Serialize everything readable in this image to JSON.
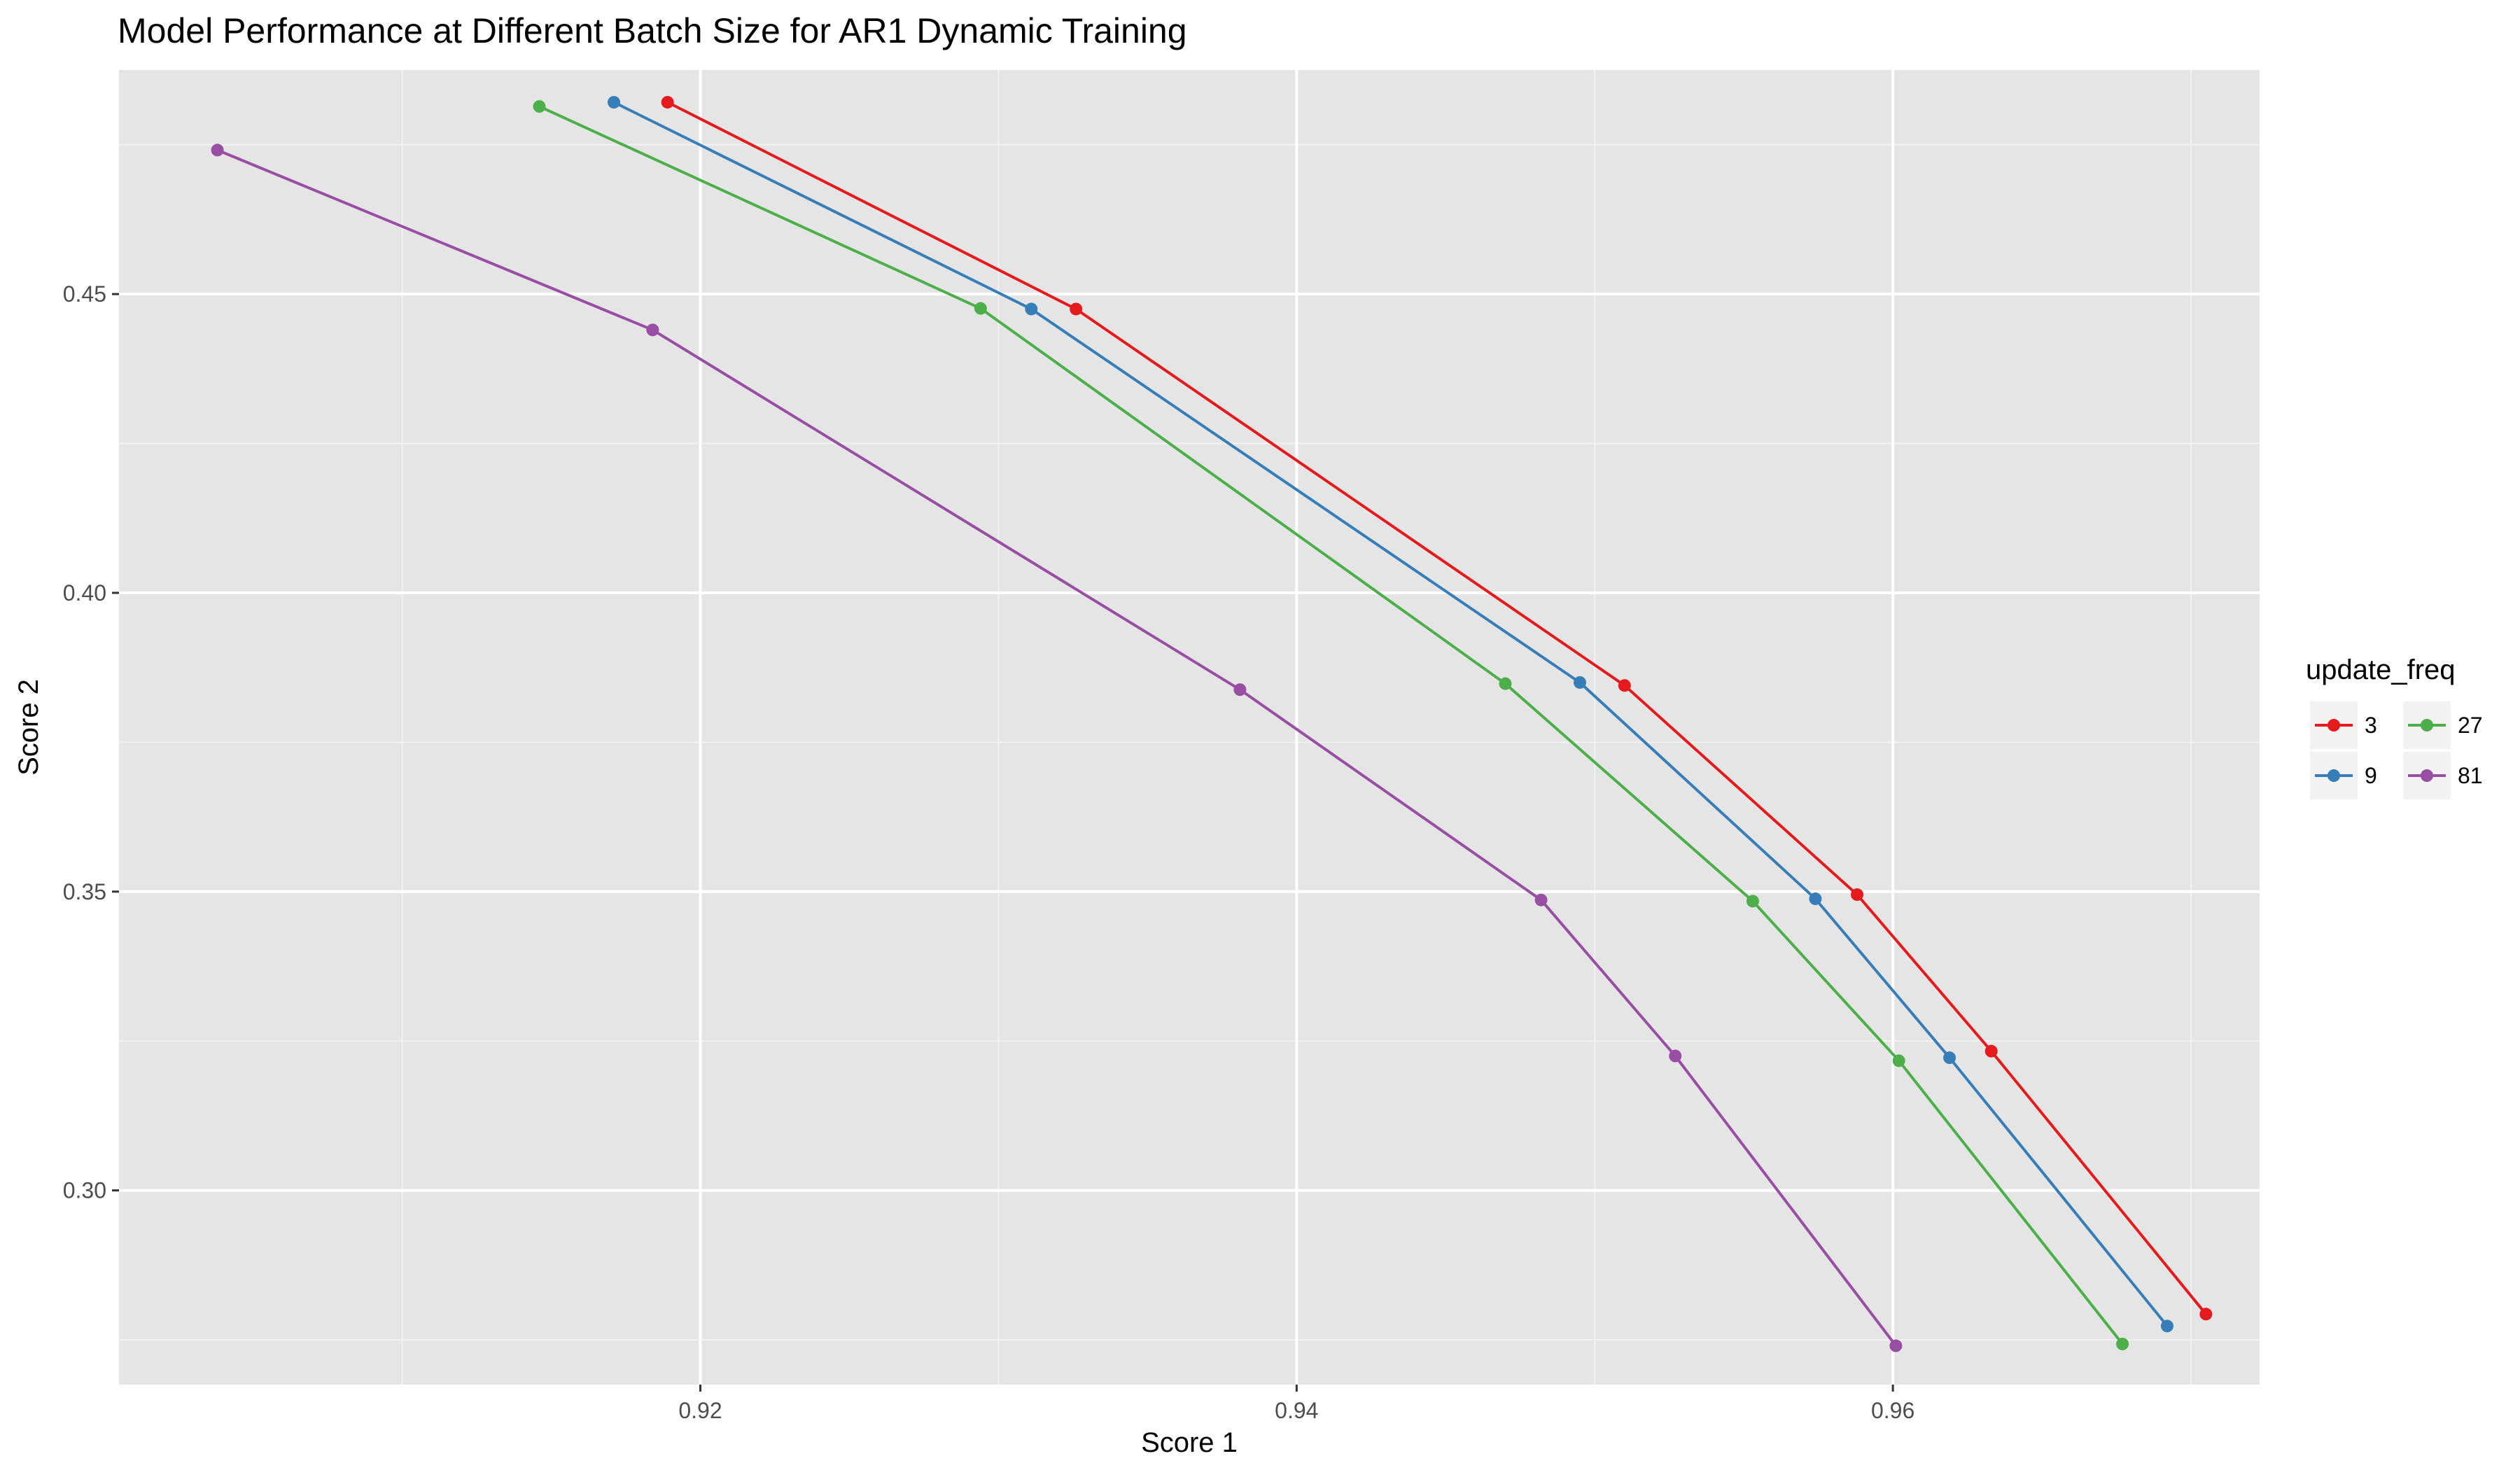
{
  "chart_data": {
    "type": "line",
    "title": "Model Performance at Different Batch Size for AR1 Dynamic Training",
    "xlabel": "Score 1",
    "ylabel": "Score 2",
    "xlim": [
      0.9005,
      0.9723
    ],
    "ylim": [
      0.2675,
      0.4875
    ],
    "x_ticks": [
      0.92,
      0.94,
      0.96
    ],
    "x_tick_labels": [
      "0.92",
      "0.94",
      "0.96"
    ],
    "y_ticks": [
      0.3,
      0.35,
      0.4,
      0.45
    ],
    "y_tick_labels": [
      "0.30",
      "0.35",
      "0.40",
      "0.45"
    ],
    "grid": true,
    "background": "#e5e5e5",
    "legend": {
      "title": "update_freq",
      "position": "right"
    },
    "series": [
      {
        "name": "3",
        "color": "#e41a1c",
        "points": [
          {
            "x": 0.9189,
            "y": 0.4821
          },
          {
            "x": 0.9326,
            "y": 0.4475
          },
          {
            "x": 0.951,
            "y": 0.3845
          },
          {
            "x": 0.9588,
            "y": 0.3495
          },
          {
            "x": 0.9633,
            "y": 0.3233
          },
          {
            "x": 0.9705,
            "y": 0.2793
          }
        ]
      },
      {
        "name": "9",
        "color": "#377eb8",
        "points": [
          {
            "x": 0.9171,
            "y": 0.4821
          },
          {
            "x": 0.9311,
            "y": 0.4475
          },
          {
            "x": 0.9495,
            "y": 0.385
          },
          {
            "x": 0.9574,
            "y": 0.3488
          },
          {
            "x": 0.9619,
            "y": 0.3222
          },
          {
            "x": 0.9692,
            "y": 0.2773
          }
        ]
      },
      {
        "name": "27",
        "color": "#4daf4a",
        "points": [
          {
            "x": 0.9146,
            "y": 0.4814
          },
          {
            "x": 0.9294,
            "y": 0.4476
          },
          {
            "x": 0.947,
            "y": 0.3848
          },
          {
            "x": 0.9553,
            "y": 0.3484
          },
          {
            "x": 0.9602,
            "y": 0.3217
          },
          {
            "x": 0.9677,
            "y": 0.2743
          }
        ]
      },
      {
        "name": "81",
        "color": "#984ea3",
        "points": [
          {
            "x": 0.9038,
            "y": 0.4741
          },
          {
            "x": 0.9184,
            "y": 0.444
          },
          {
            "x": 0.9381,
            "y": 0.3838
          },
          {
            "x": 0.9482,
            "y": 0.3486
          },
          {
            "x": 0.9527,
            "y": 0.3225
          },
          {
            "x": 0.9601,
            "y": 0.274
          }
        ]
      }
    ]
  }
}
